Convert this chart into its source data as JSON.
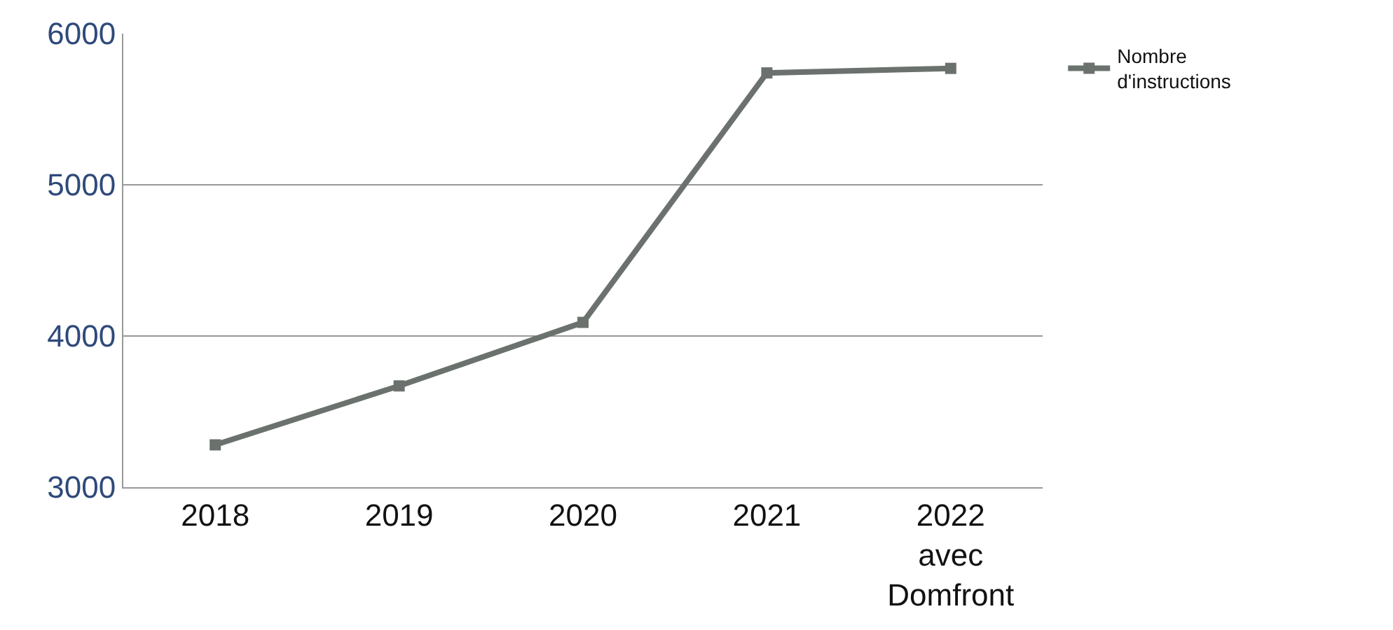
{
  "chart_data": {
    "type": "line",
    "categories": [
      "2018",
      "2019",
      "2020",
      "2021",
      "2022\navec\nDomfront"
    ],
    "series": [
      {
        "name": "Nombre\nd'instructions",
        "color": "#6b726e",
        "values": [
          3280,
          3670,
          4090,
          5740,
          5770
        ]
      }
    ],
    "ylim": [
      3000,
      6000
    ],
    "yticks": [
      3000,
      4000,
      5000,
      6000
    ],
    "grid": "y",
    "legend": "top right",
    "marker": "square",
    "line_style": "solid"
  }
}
